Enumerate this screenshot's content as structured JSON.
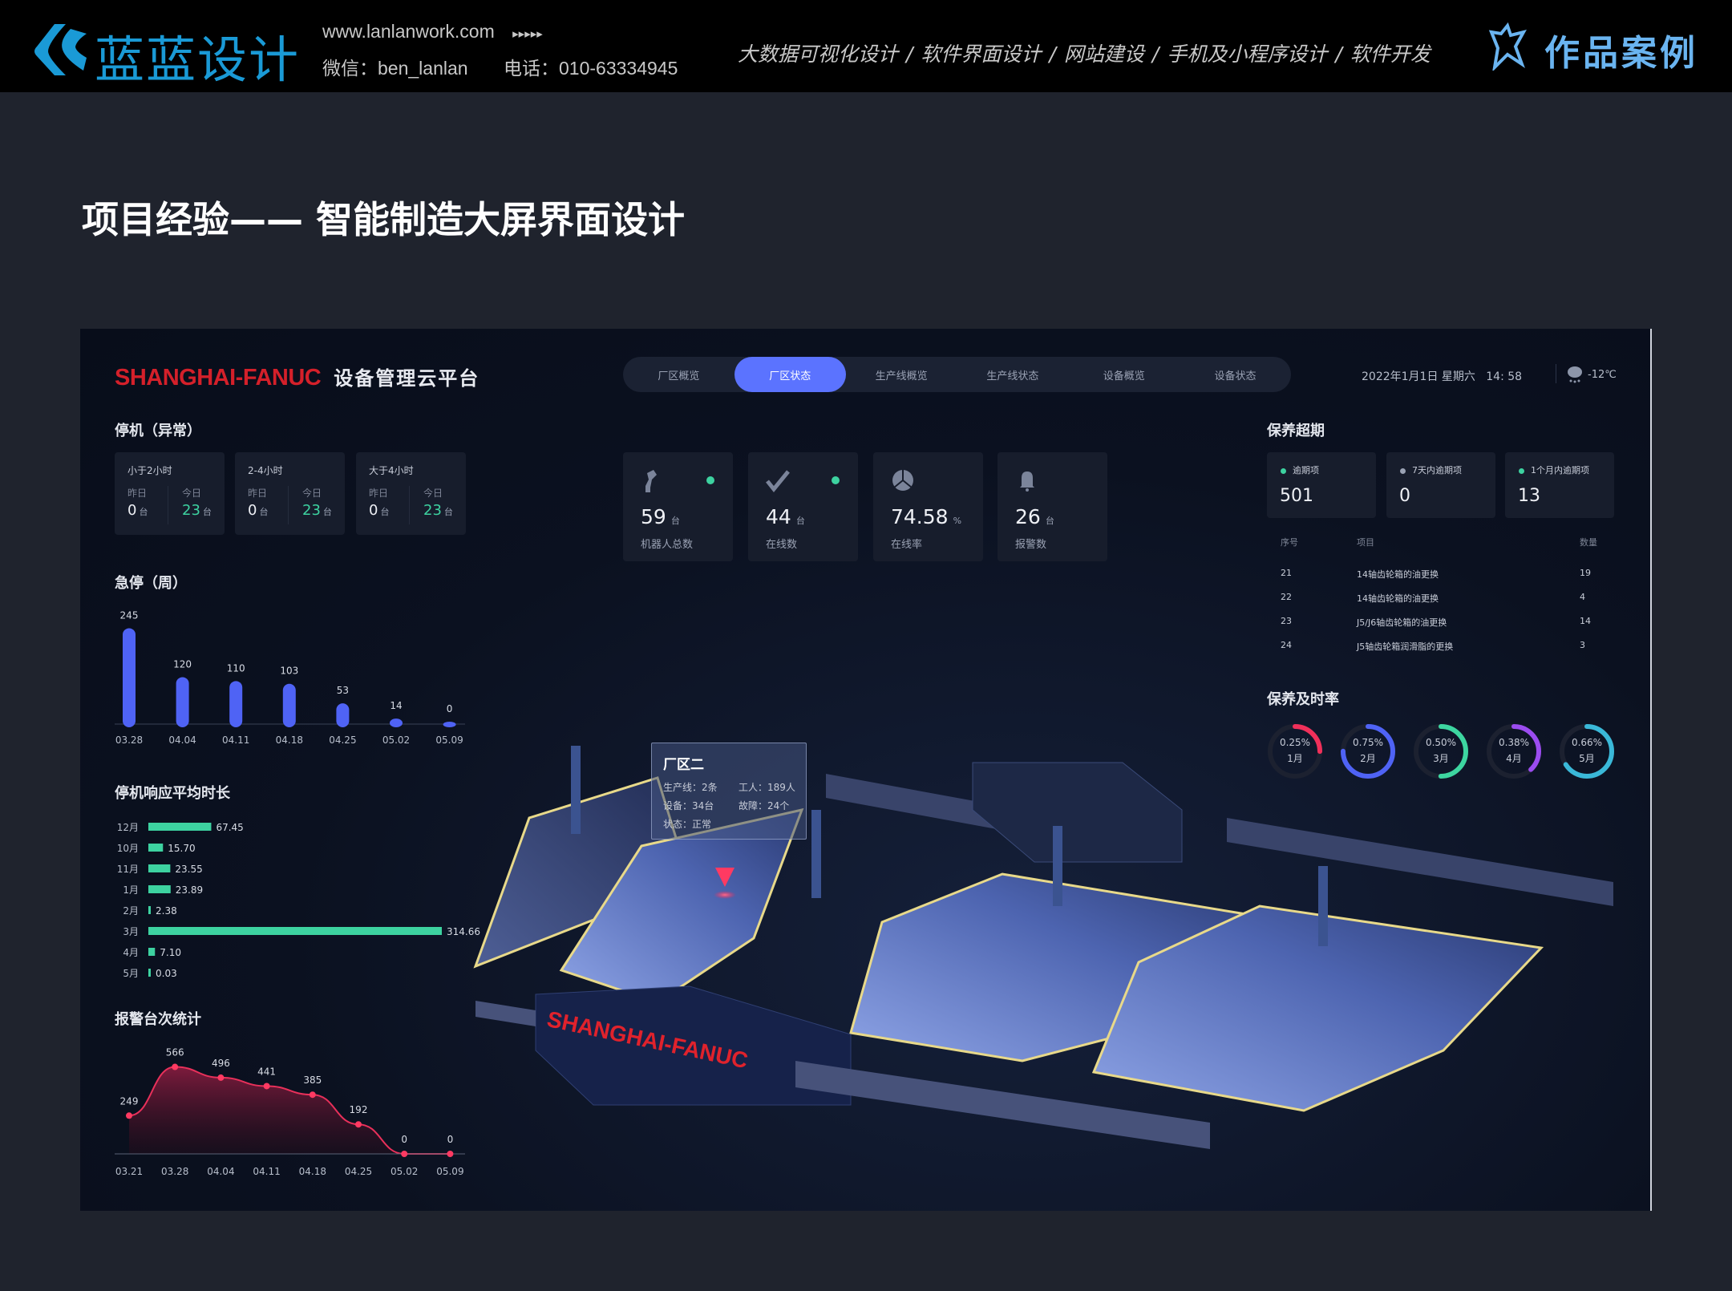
{
  "topbar": {
    "logo_text": "蓝蓝设计",
    "website": "www.lanlanwork.com",
    "arrows": "▸▸▸▸▸",
    "wechat": "微信：ben_lanlan",
    "phone": "电话：010-63334945",
    "services": [
      "大数据可视化设计",
      "/",
      "软件界面设计",
      "/",
      "网站建设",
      "/",
      "手机及小程序设计",
      "/",
      "软件开发"
    ],
    "works_label": "作品案例"
  },
  "page_title": "项目经验—— 智能制造大屏界面设计",
  "dashboard": {
    "brand": "SHANGHAI-FANUC",
    "platform": "设备管理云平台",
    "tabs": [
      {
        "label": "厂区概览",
        "active": false
      },
      {
        "label": "厂区状态",
        "active": true
      },
      {
        "label": "生产线概览",
        "active": false
      },
      {
        "label": "生产线状态",
        "active": false
      },
      {
        "label": "设备概览",
        "active": false
      },
      {
        "label": "设备状态",
        "active": false
      }
    ],
    "datetime": "2022年1月1日 星期六",
    "time": "14: 58",
    "weather_icon": "snow-cloud-icon",
    "temperature": "-12℃",
    "colors": {
      "accent": "#5b73ff",
      "green": "#3dd2a0",
      "bar_blue": "#4f63f5",
      "alarm_red": "#e8305a",
      "brand_red": "#d4202a"
    },
    "stop_abnormal": {
      "title": "停机（异常）",
      "cards": [
        {
          "label": "小于2小时",
          "yesterday_label": "昨日",
          "yesterday": "0",
          "today_label": "今日",
          "today": "23",
          "unit": "台"
        },
        {
          "label": "2-4小时",
          "yesterday_label": "昨日",
          "yesterday": "0",
          "today_label": "今日",
          "today": "23",
          "unit": "台"
        },
        {
          "label": "大于4小时",
          "yesterday_label": "昨日",
          "yesterday": "0",
          "today_label": "今日",
          "today": "23",
          "unit": "台"
        }
      ]
    },
    "kpis": [
      {
        "icon": "robot-arm-icon",
        "value": "59",
        "unit": "台",
        "label": "机器人总数",
        "status_dot": true
      },
      {
        "icon": "check-icon",
        "value": "44",
        "unit": "台",
        "label": "在线数",
        "status_dot": true
      },
      {
        "icon": "pie-icon",
        "value": "74.58",
        "unit": "%",
        "label": "在线率",
        "status_dot": false
      },
      {
        "icon": "bell-icon",
        "value": "26",
        "unit": "台",
        "label": "报警数",
        "status_dot": false
      }
    ],
    "tooltip": {
      "title": "厂区二",
      "lines": "生产线：2条",
      "workers": "工人：189人",
      "devices": "设备：34台",
      "faults": "故障：24个",
      "status": "状态：正常"
    },
    "factory_sign": "SHANGHAI-FANUC",
    "maintenance_overdue": {
      "title": "保养超期",
      "cards": [
        {
          "label": "逾期项",
          "value": "501",
          "dot": "#3dd2a0"
        },
        {
          "label": "7天内逾期项",
          "value": "0",
          "dot": "#9aa2b4"
        },
        {
          "label": "1个月内逾期项",
          "value": "13",
          "dot": "#3dd2a0"
        }
      ],
      "columns": [
        "序号",
        "项目",
        "数量"
      ],
      "rows": [
        [
          "21",
          "14轴齿轮箱的油更换",
          "19"
        ],
        [
          "22",
          "14轴齿轮箱的油更换",
          "4"
        ],
        [
          "23",
          "J5/J6轴齿轮箱的油更换",
          "14"
        ],
        [
          "24",
          "J5轴齿轮箱润滑脂的更换",
          "3"
        ]
      ]
    },
    "maintenance_rate": {
      "title": "保养及时率",
      "items": [
        {
          "label": "0.25%",
          "month": "1月",
          "value": 0.25,
          "color": "#f0305a"
        },
        {
          "label": "0.75%",
          "month": "2月",
          "value": 0.75,
          "color": "#4f63f5"
        },
        {
          "label": "0.50%",
          "month": "3月",
          "value": 0.5,
          "color": "#3dd6a0"
        },
        {
          "label": "0.38%",
          "month": "4月",
          "value": 0.38,
          "color": "#9b4cf0"
        },
        {
          "label": "0.66%",
          "month": "5月",
          "value": 0.66,
          "color": "#3ab8d8"
        }
      ]
    }
  },
  "chart_data": [
    {
      "type": "bar",
      "title": "急停（周）",
      "categories": [
        "03.28",
        "04.04",
        "04.11",
        "04.18",
        "04.25",
        "05.02",
        "05.09"
      ],
      "values": [
        245,
        120,
        110,
        103,
        53,
        14,
        0
      ],
      "ylim": [
        0,
        250
      ],
      "color": "#4f63f5",
      "grid": false
    },
    {
      "type": "bar",
      "orientation": "horizontal",
      "title": "停机响应平均时长",
      "categories": [
        "12月",
        "10月",
        "11月",
        "1月",
        "2月",
        "3月",
        "4月",
        "5月"
      ],
      "values": [
        67.45,
        15.7,
        23.55,
        23.89,
        2.38,
        314.66,
        7.1,
        0.03
      ],
      "value_labels": [
        "67.45",
        "15.70",
        "23.55",
        "23.89",
        "2.38",
        "314.66",
        "7.10",
        "0.03"
      ],
      "color": "#3dd2a0",
      "grid": false
    },
    {
      "type": "area",
      "title": "报警台次统计",
      "categories": [
        "03.21",
        "03.28",
        "04.04",
        "04.11",
        "04.18",
        "04.25",
        "05.02",
        "05.09"
      ],
      "values": [
        249,
        566,
        496,
        441,
        385,
        192,
        0,
        0
      ],
      "ylim": [
        0,
        600
      ],
      "color": "#e8305a",
      "grid": false
    }
  ]
}
